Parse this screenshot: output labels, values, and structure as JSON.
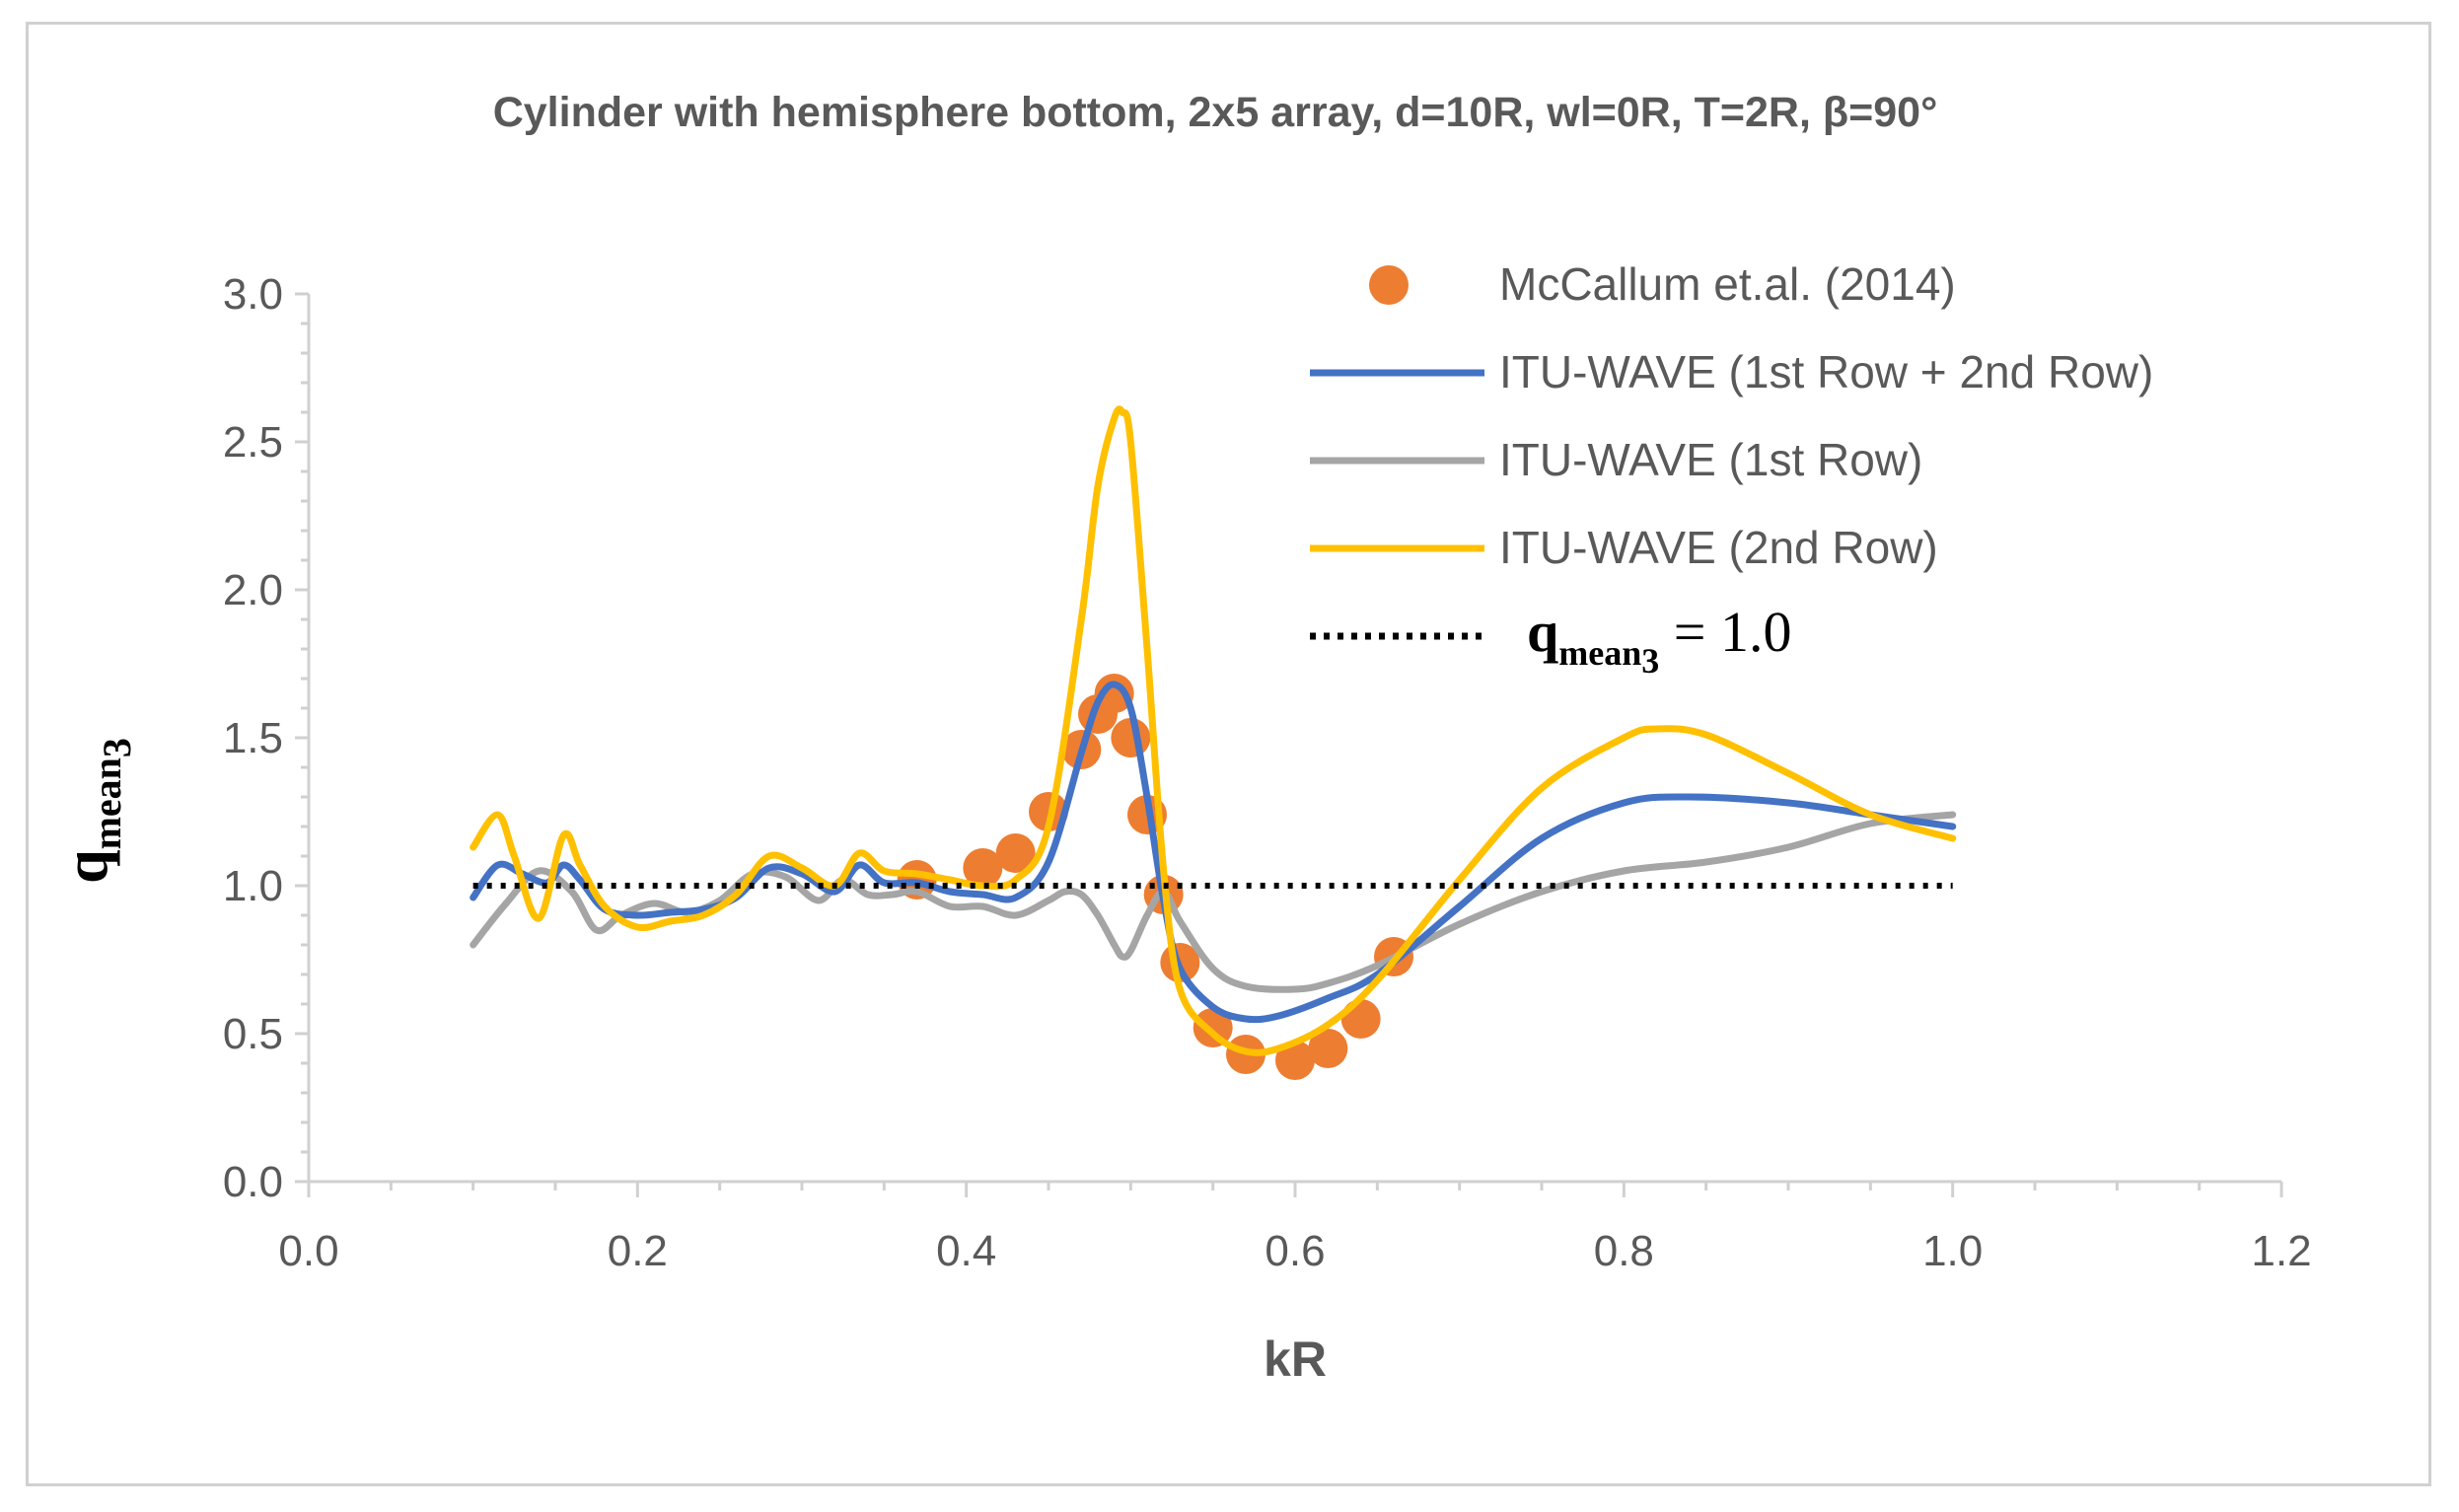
{
  "chart_data": {
    "type": "line",
    "title": "Cylinder with hemisphere bottom, 2x5 array, d=10R, wl=0R, T=2R, β=90°",
    "xlabel": "kR",
    "ylabel": "q_mean3",
    "ylabel_parts": {
      "base": "q",
      "sub": "mean",
      "subsub": "3"
    },
    "xlim": [
      0.0,
      1.2
    ],
    "ylim": [
      0.0,
      3.0
    ],
    "x_ticks": [
      "0.0",
      "0.2",
      "0.4",
      "0.6",
      "0.8",
      "1.0",
      "1.2"
    ],
    "y_ticks": [
      "0.0",
      "0.5",
      "1.0",
      "1.5",
      "2.0",
      "2.5",
      "3.0"
    ],
    "x_tick_values": [
      0.0,
      0.2,
      0.4,
      0.6,
      0.8,
      1.0,
      1.2
    ],
    "y_tick_values": [
      0.0,
      0.5,
      1.0,
      1.5,
      2.0,
      2.5,
      3.0
    ],
    "grid": false,
    "legend_position": "top-right",
    "series": [
      {
        "name": "McCallum et.al. (2014)",
        "kind": "scatter",
        "color": "#ed7d31",
        "x": [
          0.37,
          0.41,
          0.43,
          0.45,
          0.47,
          0.48,
          0.49,
          0.5,
          0.51,
          0.52,
          0.53,
          0.55,
          0.57,
          0.6,
          0.62,
          0.64,
          0.66
        ],
        "y": [
          1.02,
          1.06,
          1.11,
          1.25,
          1.46,
          1.58,
          1.65,
          1.5,
          1.24,
          0.97,
          0.74,
          0.52,
          0.43,
          0.41,
          0.45,
          0.55,
          0.76
        ]
      },
      {
        "name": "ITU-WAVE (1st Row + 2nd Row)",
        "kind": "line",
        "color": "#4472c4",
        "x": [
          0.1,
          0.115,
          0.13,
          0.145,
          0.155,
          0.165,
          0.18,
          0.2,
          0.22,
          0.24,
          0.26,
          0.28,
          0.3,
          0.32,
          0.335,
          0.35,
          0.37,
          0.39,
          0.41,
          0.43,
          0.45,
          0.47,
          0.48,
          0.49,
          0.5,
          0.51,
          0.52,
          0.53,
          0.55,
          0.57,
          0.59,
          0.62,
          0.65,
          0.7,
          0.75,
          0.8,
          0.84,
          0.9,
          0.95,
          1.0
        ],
        "y": [
          0.96,
          1.07,
          1.04,
          1.01,
          1.07,
          1.02,
          0.92,
          0.9,
          0.91,
          0.92,
          0.96,
          1.06,
          1.04,
          0.98,
          1.07,
          1.01,
          1.01,
          0.98,
          0.97,
          0.96,
          1.08,
          1.45,
          1.62,
          1.68,
          1.6,
          1.3,
          0.95,
          0.72,
          0.59,
          0.55,
          0.56,
          0.62,
          0.7,
          0.93,
          1.16,
          1.28,
          1.3,
          1.28,
          1.24,
          1.2
        ]
      },
      {
        "name": "ITU-WAVE (1st Row)",
        "kind": "line",
        "color": "#a5a5a5",
        "x": [
          0.1,
          0.12,
          0.14,
          0.16,
          0.175,
          0.19,
          0.21,
          0.23,
          0.25,
          0.27,
          0.29,
          0.31,
          0.325,
          0.34,
          0.355,
          0.37,
          0.39,
          0.41,
          0.43,
          0.45,
          0.46,
          0.47,
          0.48,
          0.49,
          0.495,
          0.5,
          0.51,
          0.52,
          0.53,
          0.55,
          0.57,
          0.6,
          0.62,
          0.65,
          0.7,
          0.75,
          0.8,
          0.85,
          0.9,
          0.95,
          1.0
        ],
        "y": [
          0.8,
          0.94,
          1.05,
          0.98,
          0.85,
          0.9,
          0.94,
          0.91,
          0.95,
          1.04,
          1.03,
          0.95,
          1.02,
          0.97,
          0.97,
          0.98,
          0.93,
          0.93,
          0.9,
          0.95,
          0.98,
          0.97,
          0.9,
          0.8,
          0.76,
          0.78,
          0.9,
          0.98,
          0.88,
          0.72,
          0.66,
          0.65,
          0.67,
          0.73,
          0.87,
          0.98,
          1.05,
          1.08,
          1.13,
          1.21,
          1.24
        ]
      },
      {
        "name": "ITU-WAVE (2nd Row)",
        "kind": "line",
        "color": "#ffc000",
        "x": [
          0.1,
          0.115,
          0.125,
          0.14,
          0.155,
          0.165,
          0.18,
          0.2,
          0.22,
          0.24,
          0.26,
          0.28,
          0.3,
          0.32,
          0.335,
          0.35,
          0.37,
          0.39,
          0.41,
          0.43,
          0.45,
          0.47,
          0.48,
          0.49,
          0.495,
          0.5,
          0.51,
          0.52,
          0.53,
          0.55,
          0.57,
          0.59,
          0.62,
          0.65,
          0.7,
          0.75,
          0.8,
          0.82,
          0.85,
          0.9,
          0.95,
          1.0
        ],
        "y": [
          1.13,
          1.24,
          1.1,
          0.89,
          1.17,
          1.07,
          0.93,
          0.86,
          0.88,
          0.9,
          0.97,
          1.1,
          1.06,
          1.0,
          1.11,
          1.05,
          1.04,
          1.02,
          1.0,
          1.02,
          1.2,
          1.9,
          2.35,
          2.58,
          2.6,
          2.5,
          1.8,
          1.05,
          0.65,
          0.5,
          0.44,
          0.45,
          0.53,
          0.68,
          1.02,
          1.33,
          1.5,
          1.53,
          1.51,
          1.38,
          1.24,
          1.16
        ]
      },
      {
        "name": "q_mean3 = 1.0",
        "kind": "reference",
        "color": "#000000",
        "x": [
          0.1,
          1.0
        ],
        "y": [
          1.0,
          1.0
        ]
      }
    ],
    "legend": {
      "entries": [
        "McCallum et.al. (2014)",
        "ITU-WAVE (1st Row + 2nd Row)",
        "ITU-WAVE (1st Row)",
        "ITU-WAVE (2nd Row)"
      ],
      "reference_label": {
        "base": "q",
        "sub": "mean",
        "subsub": "3",
        "rest": " = 1.0"
      }
    }
  }
}
